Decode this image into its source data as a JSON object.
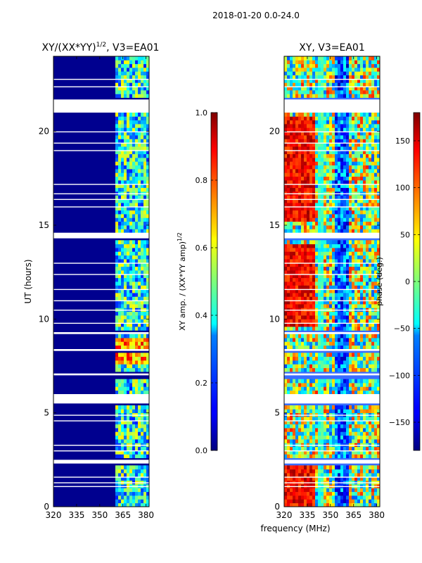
{
  "suptitle": "2018-01-20 0.0-24.0",
  "chart_data": [
    {
      "type": "heatmap",
      "title_prefix": "XY/(XX*YY)",
      "title_exponent": "1/2",
      "title_suffix": ", V3=EA01",
      "xlabel": "",
      "ylabel": "UT (hours)",
      "xlim": [
        320,
        382
      ],
      "ylim": [
        0,
        24
      ],
      "xticks": [
        320,
        335,
        350,
        365,
        380
      ],
      "yticks": [
        0,
        5,
        10,
        15,
        20
      ],
      "colorbar": {
        "label_prefix": "XY amp. / (XX*YY amp)",
        "label_exponent": "1/2",
        "range": [
          0.0,
          1.0
        ],
        "ticks": [
          0.0,
          0.2,
          0.4,
          0.6,
          0.8,
          1.0
        ],
        "tick_labels": [
          "0.0",
          "0.2",
          "0.4",
          "0.6",
          "0.8",
          "1.0"
        ]
      },
      "flagged_ut_hours": [
        [
          21.0,
          21.7
        ],
        [
          14.3,
          14.6
        ],
        [
          9.2,
          9.3
        ],
        [
          8.3,
          8.4
        ],
        [
          7.0,
          7.1
        ],
        [
          5.5,
          6.0
        ],
        [
          2.3,
          2.5
        ]
      ],
      "active_frequency_band_mhz": [
        360,
        382
      ]
    },
    {
      "type": "heatmap",
      "title": "XY, V3=EA01",
      "xlabel": "frequency (MHz)",
      "ylabel": "",
      "xlim": [
        320,
        382
      ],
      "ylim": [
        0,
        24
      ],
      "xticks": [
        320,
        335,
        350,
        365,
        380
      ],
      "yticks": [
        0,
        5,
        10,
        15,
        20
      ],
      "colorbar": {
        "label": "phase (deg.)",
        "range": [
          -180,
          180
        ],
        "ticks": [
          -150,
          -100,
          -50,
          0,
          50,
          100,
          150
        ],
        "tick_labels": [
          "−150",
          "−100",
          "−50",
          "0",
          "50",
          "100",
          "150"
        ]
      },
      "flagged_ut_hours": [
        [
          21.0,
          21.7
        ],
        [
          14.3,
          14.6
        ],
        [
          9.2,
          9.3
        ],
        [
          8.3,
          8.4
        ],
        [
          7.0,
          7.1
        ],
        [
          5.5,
          6.0
        ],
        [
          2.3,
          2.5
        ]
      ]
    }
  ]
}
